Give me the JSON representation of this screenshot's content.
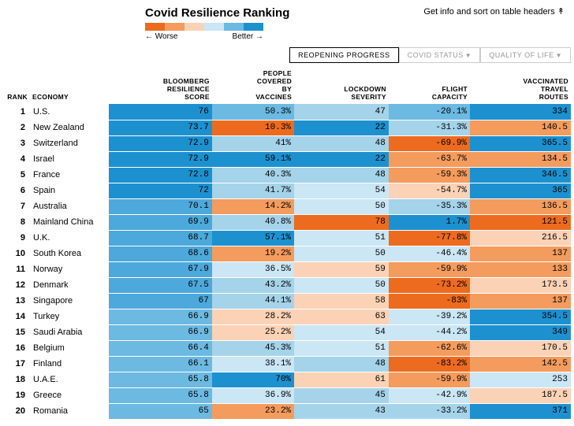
{
  "title": "Covid Resilience Ranking",
  "info_link": "Get info and sort on table headers ↟",
  "legend": {
    "worse": "← Worse",
    "better": "Better →",
    "colors": [
      "#ed6b1f",
      "#f49b5e",
      "#fbd2b5",
      "#cbe6f5",
      "#6cb9e2",
      "#1d91d0"
    ]
  },
  "tabs": [
    {
      "label": "REOPENING PROGRESS",
      "active": true
    },
    {
      "label": "COVID STATUS",
      "active": false
    },
    {
      "label": "QUALITY OF LIFE",
      "active": false
    }
  ],
  "columns": [
    "RANK",
    "ECONOMY",
    "BLOOMBERG RESILIENCE SCORE",
    "PEOPLE COVERED BY VACCINES",
    "LOCKDOWN SEVERITY",
    "FLIGHT CAPACITY",
    "VACCINATED TRAVEL ROUTES"
  ],
  "rows": [
    {
      "rank": 1,
      "economy": "U.S.",
      "cells": [
        {
          "v": "76",
          "c": "#1d91d0"
        },
        {
          "v": "50.3%",
          "c": "#6cb9e2"
        },
        {
          "v": "47",
          "c": "#a5d3ea"
        },
        {
          "v": "-20.1%",
          "c": "#6cb9e2"
        },
        {
          "v": "334",
          "c": "#1d91d0"
        }
      ]
    },
    {
      "rank": 2,
      "economy": "New Zealand",
      "cells": [
        {
          "v": "73.7",
          "c": "#1d91d0"
        },
        {
          "v": "10.3%",
          "c": "#ed6b1f"
        },
        {
          "v": "22",
          "c": "#1d91d0"
        },
        {
          "v": "-31.3%",
          "c": "#a5d3ea"
        },
        {
          "v": "140.5",
          "c": "#f49b5e"
        }
      ]
    },
    {
      "rank": 3,
      "economy": "Switzerland",
      "cells": [
        {
          "v": "72.9",
          "c": "#1d91d0"
        },
        {
          "v": "41%",
          "c": "#a5d3ea"
        },
        {
          "v": "48",
          "c": "#a5d3ea"
        },
        {
          "v": "-69.9%",
          "c": "#ed6b1f"
        },
        {
          "v": "365.5",
          "c": "#1d91d0"
        }
      ]
    },
    {
      "rank": 4,
      "economy": "Israel",
      "cells": [
        {
          "v": "72.9",
          "c": "#1d91d0"
        },
        {
          "v": "59.1%",
          "c": "#1d91d0"
        },
        {
          "v": "22",
          "c": "#1d91d0"
        },
        {
          "v": "-63.7%",
          "c": "#f49b5e"
        },
        {
          "v": "134.5",
          "c": "#f49b5e"
        }
      ]
    },
    {
      "rank": 5,
      "economy": "France",
      "cells": [
        {
          "v": "72.8",
          "c": "#1d91d0"
        },
        {
          "v": "40.3%",
          "c": "#a5d3ea"
        },
        {
          "v": "48",
          "c": "#a5d3ea"
        },
        {
          "v": "-59.3%",
          "c": "#f49b5e"
        },
        {
          "v": "346.5",
          "c": "#1d91d0"
        }
      ]
    },
    {
      "rank": 6,
      "economy": "Spain",
      "cells": [
        {
          "v": "72",
          "c": "#1d91d0"
        },
        {
          "v": "41.7%",
          "c": "#a5d3ea"
        },
        {
          "v": "54",
          "c": "#cbe6f5"
        },
        {
          "v": "-54.7%",
          "c": "#fbd2b5"
        },
        {
          "v": "365",
          "c": "#1d91d0"
        }
      ]
    },
    {
      "rank": 7,
      "economy": "Australia",
      "cells": [
        {
          "v": "70.1",
          "c": "#4da8db"
        },
        {
          "v": "14.2%",
          "c": "#f49b5e"
        },
        {
          "v": "50",
          "c": "#cbe6f5"
        },
        {
          "v": "-35.3%",
          "c": "#a5d3ea"
        },
        {
          "v": "136.5",
          "c": "#f49b5e"
        }
      ]
    },
    {
      "rank": 8,
      "economy": "Mainland China",
      "cells": [
        {
          "v": "69.9",
          "c": "#4da8db"
        },
        {
          "v": "40.8%",
          "c": "#a5d3ea"
        },
        {
          "v": "78",
          "c": "#ed6b1f"
        },
        {
          "v": "1.7%",
          "c": "#1d91d0"
        },
        {
          "v": "121.5",
          "c": "#ed6b1f"
        }
      ]
    },
    {
      "rank": 9,
      "economy": "U.K.",
      "cells": [
        {
          "v": "68.7",
          "c": "#4da8db"
        },
        {
          "v": "57.1%",
          "c": "#1d91d0"
        },
        {
          "v": "51",
          "c": "#cbe6f5"
        },
        {
          "v": "-77.8%",
          "c": "#ed6b1f"
        },
        {
          "v": "216.5",
          "c": "#fbd2b5"
        }
      ]
    },
    {
      "rank": 10,
      "economy": "South Korea",
      "cells": [
        {
          "v": "68.6",
          "c": "#4da8db"
        },
        {
          "v": "19.2%",
          "c": "#f49b5e"
        },
        {
          "v": "50",
          "c": "#cbe6f5"
        },
        {
          "v": "-46.4%",
          "c": "#cbe6f5"
        },
        {
          "v": "137",
          "c": "#f49b5e"
        }
      ]
    },
    {
      "rank": 11,
      "economy": "Norway",
      "cells": [
        {
          "v": "67.9",
          "c": "#4da8db"
        },
        {
          "v": "36.5%",
          "c": "#cbe6f5"
        },
        {
          "v": "59",
          "c": "#fbd2b5"
        },
        {
          "v": "-59.9%",
          "c": "#f49b5e"
        },
        {
          "v": "133",
          "c": "#f49b5e"
        }
      ]
    },
    {
      "rank": 12,
      "economy": "Denmark",
      "cells": [
        {
          "v": "67.5",
          "c": "#4da8db"
        },
        {
          "v": "43.2%",
          "c": "#a5d3ea"
        },
        {
          "v": "50",
          "c": "#cbe6f5"
        },
        {
          "v": "-73.2%",
          "c": "#ed6b1f"
        },
        {
          "v": "173.5",
          "c": "#fbd2b5"
        }
      ]
    },
    {
      "rank": 13,
      "economy": "Singapore",
      "cells": [
        {
          "v": "67",
          "c": "#4da8db"
        },
        {
          "v": "44.1%",
          "c": "#a5d3ea"
        },
        {
          "v": "58",
          "c": "#fbd2b5"
        },
        {
          "v": "-83%",
          "c": "#ed6b1f"
        },
        {
          "v": "137",
          "c": "#f49b5e"
        }
      ]
    },
    {
      "rank": 14,
      "economy": "Turkey",
      "cells": [
        {
          "v": "66.9",
          "c": "#6cb9e2"
        },
        {
          "v": "28.2%",
          "c": "#fbd2b5"
        },
        {
          "v": "63",
          "c": "#fbd2b5"
        },
        {
          "v": "-39.2%",
          "c": "#cbe6f5"
        },
        {
          "v": "354.5",
          "c": "#1d91d0"
        }
      ]
    },
    {
      "rank": 15,
      "economy": "Saudi Arabia",
      "cells": [
        {
          "v": "66.9",
          "c": "#6cb9e2"
        },
        {
          "v": "25.2%",
          "c": "#fbd2b5"
        },
        {
          "v": "54",
          "c": "#cbe6f5"
        },
        {
          "v": "-44.2%",
          "c": "#cbe6f5"
        },
        {
          "v": "349",
          "c": "#1d91d0"
        }
      ]
    },
    {
      "rank": 16,
      "economy": "Belgium",
      "cells": [
        {
          "v": "66.4",
          "c": "#6cb9e2"
        },
        {
          "v": "45.3%",
          "c": "#a5d3ea"
        },
        {
          "v": "51",
          "c": "#cbe6f5"
        },
        {
          "v": "-62.6%",
          "c": "#f49b5e"
        },
        {
          "v": "170.5",
          "c": "#fbd2b5"
        }
      ]
    },
    {
      "rank": 17,
      "economy": "Finland",
      "cells": [
        {
          "v": "66.1",
          "c": "#6cb9e2"
        },
        {
          "v": "38.1%",
          "c": "#cbe6f5"
        },
        {
          "v": "48",
          "c": "#a5d3ea"
        },
        {
          "v": "-83.2%",
          "c": "#ed6b1f"
        },
        {
          "v": "142.5",
          "c": "#f49b5e"
        }
      ]
    },
    {
      "rank": 18,
      "economy": "U.A.E.",
      "cells": [
        {
          "v": "65.8",
          "c": "#6cb9e2"
        },
        {
          "v": "70%",
          "c": "#1d91d0"
        },
        {
          "v": "61",
          "c": "#fbd2b5"
        },
        {
          "v": "-59.9%",
          "c": "#f49b5e"
        },
        {
          "v": "253",
          "c": "#cbe6f5"
        }
      ]
    },
    {
      "rank": 19,
      "economy": "Greece",
      "cells": [
        {
          "v": "65.8",
          "c": "#6cb9e2"
        },
        {
          "v": "36.9%",
          "c": "#cbe6f5"
        },
        {
          "v": "45",
          "c": "#a5d3ea"
        },
        {
          "v": "-42.9%",
          "c": "#cbe6f5"
        },
        {
          "v": "187.5",
          "c": "#fbd2b5"
        }
      ]
    },
    {
      "rank": 20,
      "economy": "Romania",
      "cells": [
        {
          "v": "65",
          "c": "#6cb9e2"
        },
        {
          "v": "23.2%",
          "c": "#f49b5e"
        },
        {
          "v": "43",
          "c": "#a5d3ea"
        },
        {
          "v": "-33.2%",
          "c": "#a5d3ea"
        },
        {
          "v": "371",
          "c": "#1d91d0"
        }
      ]
    }
  ]
}
